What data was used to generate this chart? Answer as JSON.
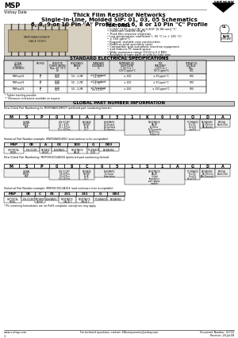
{
  "bg_color": "#ffffff",
  "title_lines": [
    "Thick Film Resistor Networks",
    "Single-In-Line, Molded SIP; 01, 03, 05 Schematics",
    "6, 8, 9 or 10 Pin \"A\" Profile and 6, 8 or 10 Pin \"C\" Profile"
  ],
  "brand": "MSP",
  "company": "Vishay Dale",
  "features_title": "FEATURES",
  "features": [
    "0.165\" [4.95 mm] \"A\" or 0.200\" [5.08 mm] \"C\"",
    "maximum seated height",
    "Thick film resistive elements",
    "Low temperature coefficient (- 55 °C to + 125 °C)",
    "± 100 ppm/°C",
    "Rugged, molded case construction",
    "Reduces total assembly costs",
    "Compatible with automatic insertion equipment",
    "and reduces PC board space",
    "Wide resistance range (10 Ω to 2.2 MΩ)",
    "Available in tape pack or side-by-side pins",
    "Lead (Pb)-free version is RoHS compliant"
  ],
  "std_elec_title": "STANDARD ELECTRICAL SPECIFICATIONS",
  "global_pn_title": "GLOBAL PART NUMBER INFORMATION",
  "new_global_label_a": "New Global Part Numbering for MSP09A001M00F (preferred part numbering format):",
  "new_global_boxes_a": [
    "M",
    "S",
    "P",
    "0",
    "8",
    "A",
    "8",
    "3",
    "1",
    "K",
    "0",
    "0",
    "Q",
    "D",
    "A"
  ],
  "hist_label_a": "Historical Part Number example: MSP08A001K00 (and continue to be acceptable):",
  "hist_boxes_a": [
    "MSP",
    "08",
    "A",
    "03",
    "100",
    "G",
    "D03"
  ],
  "hist_fields_a": [
    "HISTORICAL\nMODEL",
    "PIN COUNT",
    "PACKAGE\nHEIGHT",
    "SCHEMATIC",
    "RESISTANCE\nVALUE",
    "TOLERANCE\nCODE",
    "PACKAGING"
  ],
  "new_global_label_b": "New Global Part Numbering: MSP09C0312A004 (preferred part numbering format):",
  "new_global_boxes_b": [
    "M",
    "S",
    "P",
    "0",
    "8",
    "C",
    "0",
    "5",
    "1",
    "S",
    "1",
    "A",
    "G",
    "D",
    "A"
  ],
  "hist_label_b": "Historical Part Number example: MSP08C0512A104 (and continues to be acceptable):",
  "hist_boxes_b": [
    "MSP",
    "08",
    "C",
    "05",
    "231",
    "331",
    "G",
    "D03"
  ],
  "hist_fields_b": [
    "HISTORICAL\nMODEL",
    "PIN COUNT",
    "PACKAGE\nHEIGHT",
    "SCHEMATIC",
    "RESISTANCE\nVALUE 1",
    "RESISTANCE\nVALUE 2",
    "TOLERANCE",
    "PACKAGING"
  ],
  "pn_footnote": "* PS containing formulations are not RoHS compliant, exemptions may apply.",
  "footer_left": "www.vishay.com",
  "footer_center": "For technical questions, contact: DAcomponents@vishay.com",
  "footer_doc": "Document Number: 31733",
  "footer_rev": "Revision: 28-Jul-08",
  "footer_page": "1"
}
